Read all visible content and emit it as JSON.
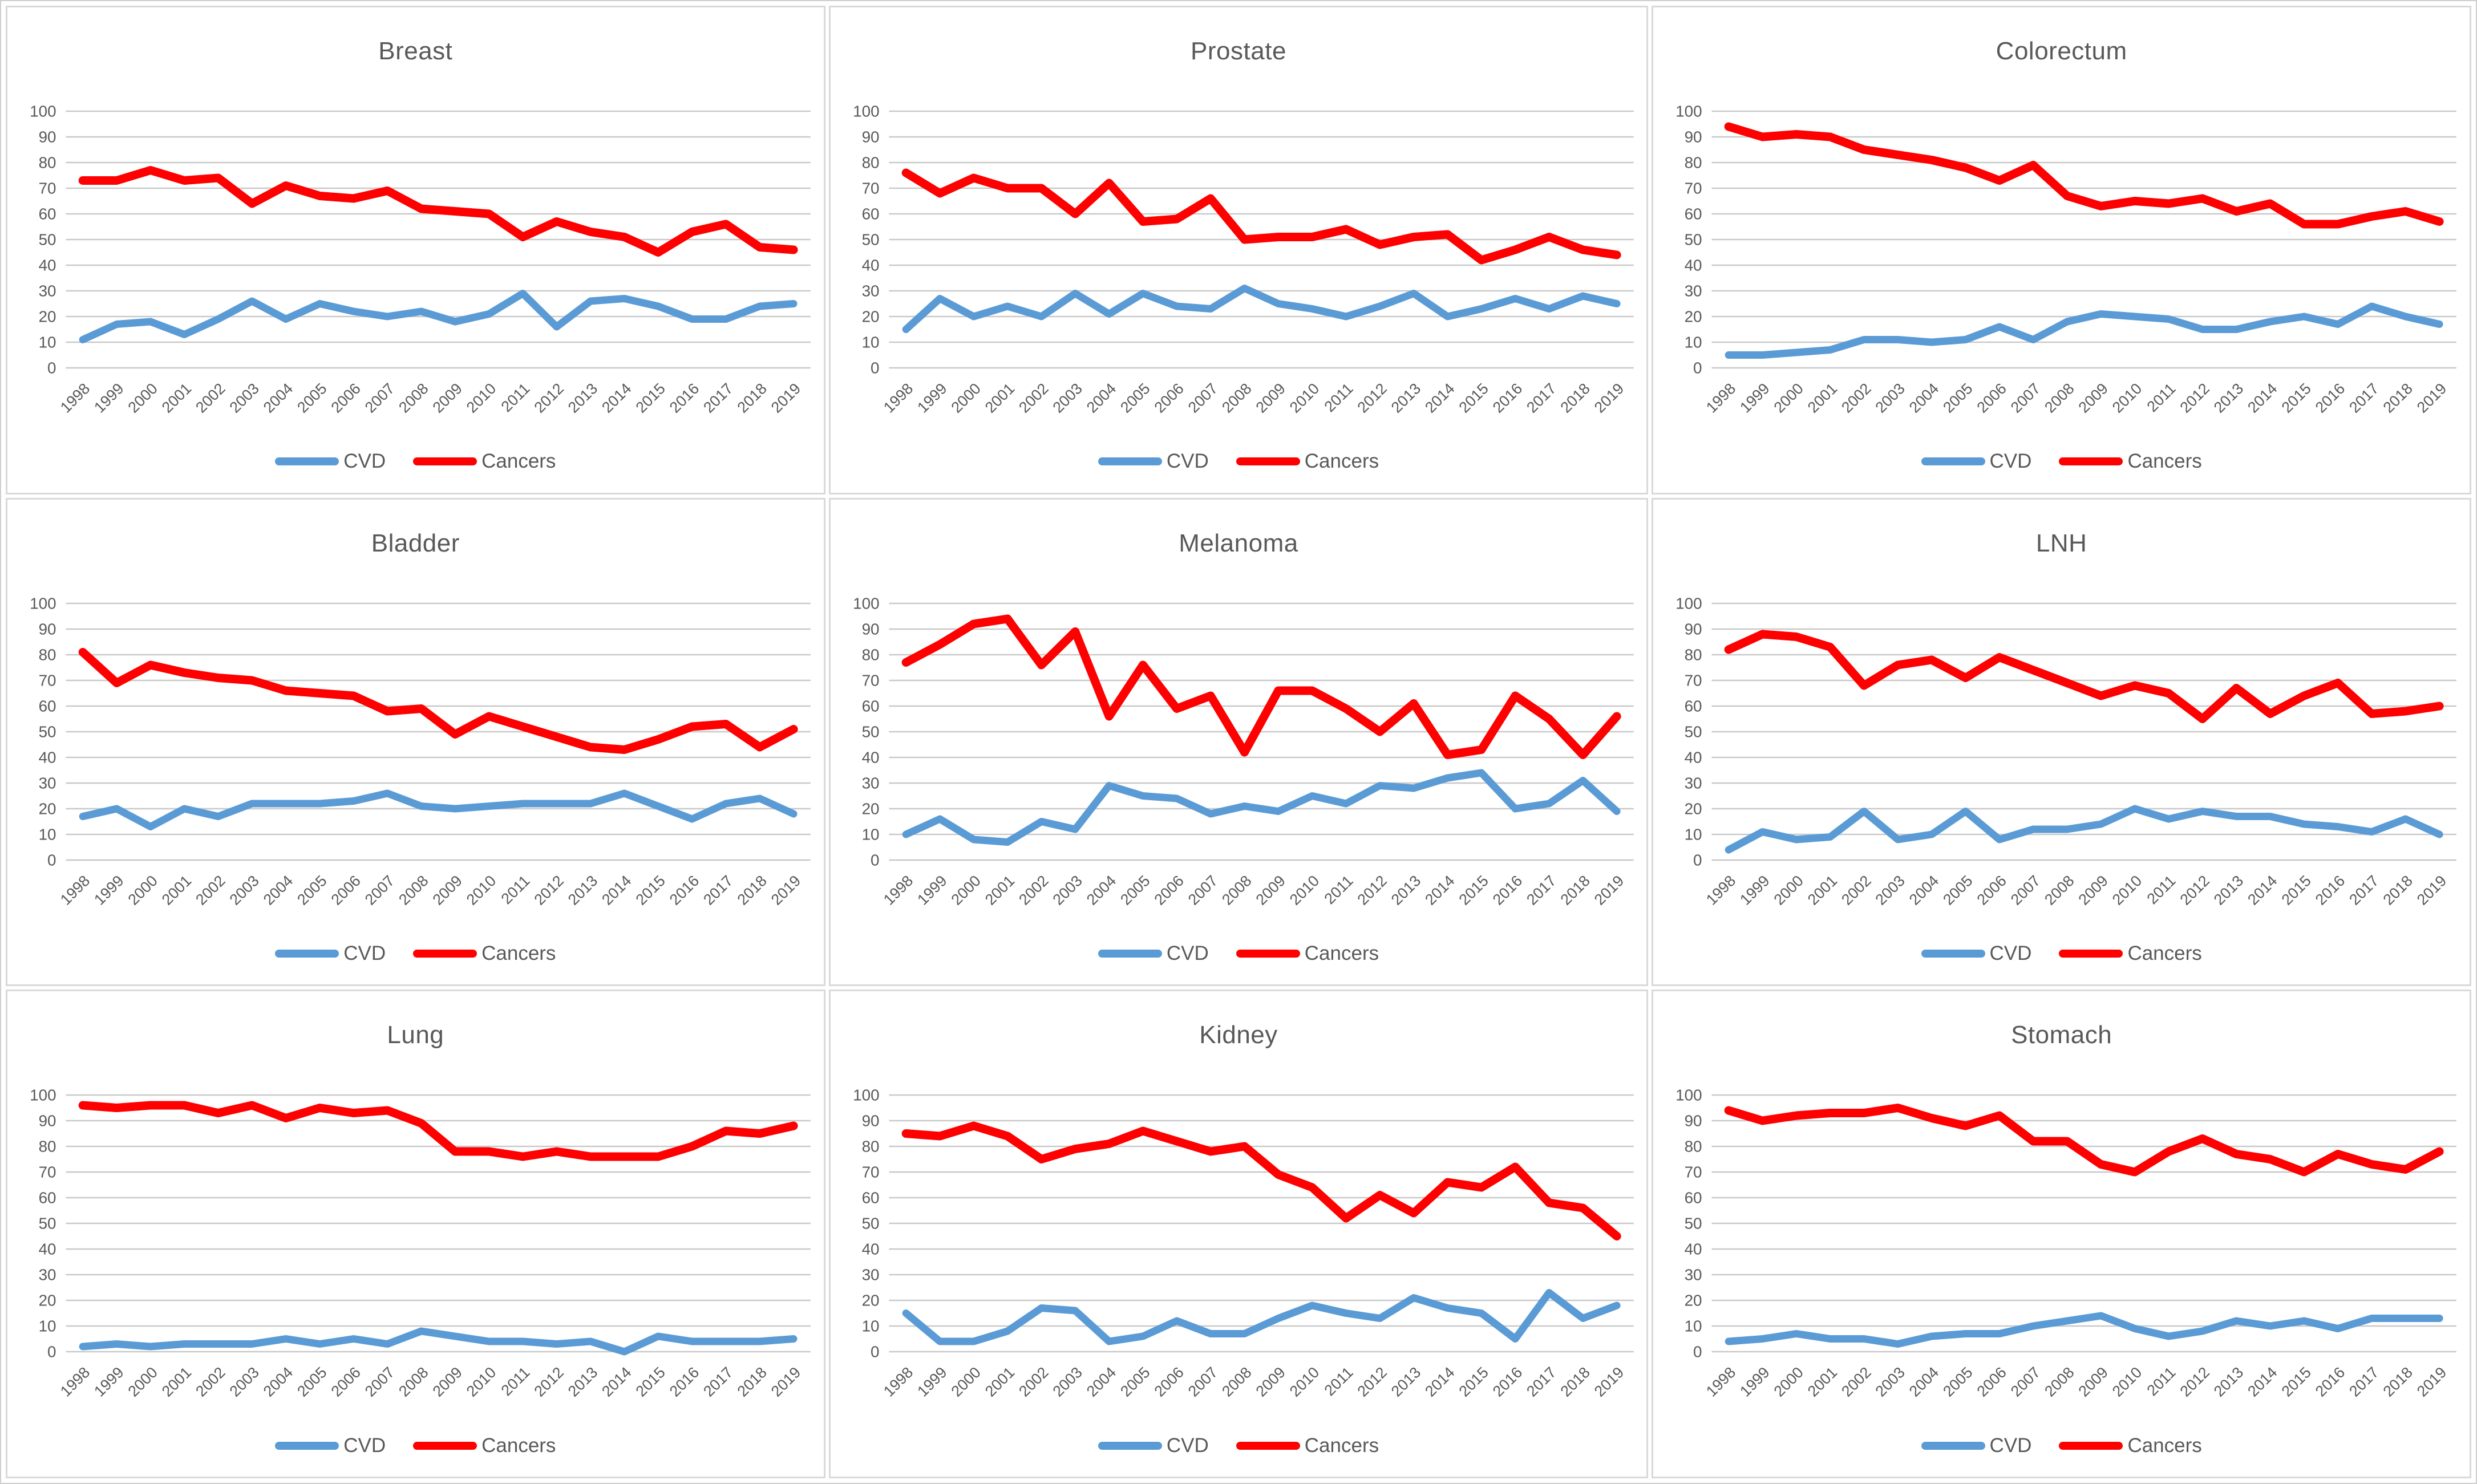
{
  "colors": {
    "cvd": "#5B9BD5",
    "cancers": "#FE0000",
    "grid": "#C9C9C9",
    "text": "#595959",
    "panel_border": "#D9D9D9",
    "background": "#FFFFFF"
  },
  "y_ticks": [
    100,
    90,
    80,
    70,
    60,
    50,
    40,
    30,
    20,
    10,
    0
  ],
  "years": [
    "1998",
    "1999",
    "2000",
    "2001",
    "2002",
    "2003",
    "2004",
    "2005",
    "2006",
    "2007",
    "2008",
    "2009",
    "2010",
    "2011",
    "2012",
    "2013",
    "2014",
    "2015",
    "2016",
    "2017",
    "2018",
    "2019"
  ],
  "chart_data": [
    {
      "type": "line",
      "title": "Breast",
      "xlabel": "",
      "ylabel": "",
      "ylim": [
        0,
        100
      ],
      "grid": true,
      "legend_position": "bottom",
      "categories": [
        "1998",
        "1999",
        "2000",
        "2001",
        "2002",
        "2003",
        "2004",
        "2005",
        "2006",
        "2007",
        "2008",
        "2009",
        "2010",
        "2011",
        "2012",
        "2013",
        "2014",
        "2015",
        "2016",
        "2017",
        "2018",
        "2019"
      ],
      "series": [
        {
          "name": "CVD",
          "color_key": "cvd",
          "values": [
            11,
            17,
            18,
            13,
            19,
            26,
            19,
            25,
            22,
            20,
            22,
            18,
            21,
            29,
            16,
            26,
            27,
            24,
            19,
            19,
            24,
            25
          ]
        },
        {
          "name": "Cancers",
          "color_key": "cancers",
          "values": [
            73,
            73,
            77,
            73,
            74,
            64,
            71,
            67,
            66,
            69,
            62,
            61,
            60,
            51,
            57,
            53,
            51,
            45,
            53,
            56,
            47,
            46
          ]
        }
      ]
    },
    {
      "type": "line",
      "title": "Prostate",
      "xlabel": "",
      "ylabel": "",
      "ylim": [
        0,
        100
      ],
      "grid": true,
      "legend_position": "bottom",
      "categories": [
        "1998",
        "1999",
        "2000",
        "2001",
        "2002",
        "2003",
        "2004",
        "2005",
        "2006",
        "2007",
        "2008",
        "2009",
        "2010",
        "2011",
        "2012",
        "2013",
        "2014",
        "2015",
        "2016",
        "2017",
        "2018",
        "2019"
      ],
      "series": [
        {
          "name": "CVD",
          "color_key": "cvd",
          "values": [
            15,
            27,
            20,
            24,
            20,
            29,
            21,
            29,
            24,
            23,
            31,
            25,
            23,
            20,
            24,
            29,
            20,
            23,
            27,
            23,
            28,
            25
          ]
        },
        {
          "name": "Cancers",
          "color_key": "cancers",
          "values": [
            76,
            68,
            74,
            70,
            70,
            60,
            72,
            57,
            58,
            66,
            50,
            51,
            51,
            54,
            48,
            51,
            52,
            42,
            46,
            51,
            46,
            44
          ]
        }
      ]
    },
    {
      "type": "line",
      "title": "Colorectum",
      "xlabel": "",
      "ylabel": "",
      "ylim": [
        0,
        100
      ],
      "grid": true,
      "legend_position": "bottom",
      "categories": [
        "1998",
        "1999",
        "2000",
        "2001",
        "2002",
        "2003",
        "2004",
        "2005",
        "2006",
        "2007",
        "2008",
        "2009",
        "2010",
        "2011",
        "2012",
        "2013",
        "2014",
        "2015",
        "2016",
        "2017",
        "2018",
        "2019"
      ],
      "series": [
        {
          "name": "CVD",
          "color_key": "cvd",
          "values": [
            5,
            5,
            6,
            7,
            11,
            11,
            10,
            11,
            16,
            11,
            18,
            21,
            20,
            19,
            15,
            15,
            18,
            20,
            17,
            24,
            20,
            17
          ]
        },
        {
          "name": "Cancers",
          "color_key": "cancers",
          "values": [
            94,
            90,
            91,
            90,
            85,
            83,
            81,
            78,
            73,
            79,
            67,
            63,
            65,
            64,
            66,
            61,
            64,
            56,
            56,
            59,
            61,
            57
          ]
        }
      ]
    },
    {
      "type": "line",
      "title": "Bladder",
      "xlabel": "",
      "ylabel": "",
      "ylim": [
        0,
        100
      ],
      "grid": true,
      "legend_position": "bottom",
      "categories": [
        "1998",
        "1999",
        "2000",
        "2001",
        "2002",
        "2003",
        "2004",
        "2005",
        "2006",
        "2007",
        "2008",
        "2009",
        "2010",
        "2011",
        "2012",
        "2013",
        "2014",
        "2015",
        "2016",
        "2017",
        "2018",
        "2019"
      ],
      "series": [
        {
          "name": "CVD",
          "color_key": "cvd",
          "values": [
            17,
            20,
            13,
            20,
            17,
            22,
            22,
            22,
            23,
            26,
            21,
            20,
            21,
            22,
            22,
            22,
            26,
            21,
            16,
            22,
            24,
            18
          ]
        },
        {
          "name": "Cancers",
          "color_key": "cancers",
          "values": [
            81,
            69,
            76,
            73,
            71,
            70,
            66,
            65,
            64,
            58,
            59,
            49,
            56,
            52,
            48,
            44,
            43,
            47,
            52,
            53,
            44,
            51
          ]
        }
      ]
    },
    {
      "type": "line",
      "title": "Melanoma",
      "xlabel": "",
      "ylabel": "",
      "ylim": [
        0,
        100
      ],
      "grid": true,
      "legend_position": "bottom",
      "categories": [
        "1998",
        "1999",
        "2000",
        "2001",
        "2002",
        "2003",
        "2004",
        "2005",
        "2006",
        "2007",
        "2008",
        "2009",
        "2010",
        "2011",
        "2012",
        "2013",
        "2014",
        "2015",
        "2016",
        "2017",
        "2018",
        "2019"
      ],
      "series": [
        {
          "name": "CVD",
          "color_key": "cvd",
          "values": [
            10,
            16,
            8,
            7,
            15,
            12,
            29,
            25,
            24,
            18,
            21,
            19,
            25,
            22,
            29,
            28,
            32,
            34,
            20,
            22,
            31,
            19
          ]
        },
        {
          "name": "Cancers",
          "color_key": "cancers",
          "values": [
            77,
            84,
            92,
            94,
            76,
            89,
            56,
            76,
            59,
            64,
            42,
            66,
            66,
            59,
            50,
            61,
            41,
            43,
            64,
            55,
            41,
            56
          ]
        }
      ]
    },
    {
      "type": "line",
      "title": "LNH",
      "xlabel": "",
      "ylabel": "",
      "ylim": [
        0,
        100
      ],
      "grid": true,
      "legend_position": "bottom",
      "categories": [
        "1998",
        "1999",
        "2000",
        "2001",
        "2002",
        "2003",
        "2004",
        "2005",
        "2006",
        "2007",
        "2008",
        "2009",
        "2010",
        "2011",
        "2012",
        "2013",
        "2014",
        "2015",
        "2016",
        "2017",
        "2018",
        "2019"
      ],
      "series": [
        {
          "name": "CVD",
          "color_key": "cvd",
          "values": [
            4,
            11,
            8,
            9,
            19,
            8,
            10,
            19,
            8,
            12,
            12,
            14,
            20,
            16,
            19,
            17,
            17,
            14,
            13,
            11,
            16,
            10
          ]
        },
        {
          "name": "Cancers",
          "color_key": "cancers",
          "values": [
            82,
            88,
            87,
            83,
            68,
            76,
            78,
            71,
            79,
            74,
            69,
            64,
            68,
            65,
            55,
            67,
            57,
            64,
            69,
            57,
            58,
            60
          ]
        }
      ]
    },
    {
      "type": "line",
      "title": "Lung",
      "xlabel": "",
      "ylabel": "",
      "ylim": [
        0,
        100
      ],
      "grid": true,
      "legend_position": "bottom",
      "categories": [
        "1998",
        "1999",
        "2000",
        "2001",
        "2002",
        "2003",
        "2004",
        "2005",
        "2006",
        "2007",
        "2008",
        "2009",
        "2010",
        "2011",
        "2012",
        "2013",
        "2014",
        "2015",
        "2016",
        "2017",
        "2018",
        "2019"
      ],
      "series": [
        {
          "name": "CVD",
          "color_key": "cvd",
          "values": [
            2,
            3,
            2,
            3,
            3,
            3,
            5,
            3,
            5,
            3,
            8,
            6,
            4,
            4,
            3,
            4,
            0,
            6,
            4,
            4,
            4,
            5
          ]
        },
        {
          "name": "Cancers",
          "color_key": "cancers",
          "values": [
            96,
            95,
            96,
            96,
            93,
            96,
            91,
            95,
            93,
            94,
            89,
            78,
            78,
            76,
            78,
            76,
            76,
            76,
            80,
            86,
            85,
            88
          ]
        }
      ]
    },
    {
      "type": "line",
      "title": "Kidney",
      "xlabel": "",
      "ylabel": "",
      "ylim": [
        0,
        100
      ],
      "grid": true,
      "legend_position": "bottom",
      "categories": [
        "1998",
        "1999",
        "2000",
        "2001",
        "2002",
        "2003",
        "2004",
        "2005",
        "2006",
        "2007",
        "2008",
        "2009",
        "2010",
        "2011",
        "2012",
        "2013",
        "2014",
        "2015",
        "2016",
        "2017",
        "2018",
        "2019"
      ],
      "series": [
        {
          "name": "CVD",
          "color_key": "cvd",
          "values": [
            15,
            4,
            4,
            8,
            17,
            16,
            4,
            6,
            12,
            7,
            7,
            13,
            18,
            15,
            13,
            21,
            17,
            15,
            5,
            23,
            13,
            18
          ]
        },
        {
          "name": "Cancers",
          "color_key": "cancers",
          "values": [
            85,
            84,
            88,
            84,
            75,
            79,
            81,
            86,
            82,
            78,
            80,
            69,
            64,
            52,
            61,
            54,
            66,
            64,
            72,
            58,
            56,
            45
          ]
        }
      ]
    },
    {
      "type": "line",
      "title": "Stomach",
      "xlabel": "",
      "ylabel": "",
      "ylim": [
        0,
        100
      ],
      "grid": true,
      "legend_position": "bottom",
      "categories": [
        "1998",
        "1999",
        "2000",
        "2001",
        "2002",
        "2003",
        "2004",
        "2005",
        "2006",
        "2007",
        "2008",
        "2009",
        "2010",
        "2011",
        "2012",
        "2013",
        "2014",
        "2015",
        "2016",
        "2017",
        "2018",
        "2019"
      ],
      "series": [
        {
          "name": "CVD",
          "color_key": "cvd",
          "values": [
            4,
            5,
            7,
            5,
            5,
            3,
            6,
            7,
            7,
            10,
            12,
            14,
            9,
            6,
            8,
            12,
            10,
            12,
            9,
            13,
            13,
            13
          ]
        },
        {
          "name": "Cancers",
          "color_key": "cancers",
          "values": [
            94,
            90,
            92,
            93,
            93,
            95,
            91,
            88,
            92,
            82,
            82,
            73,
            70,
            78,
            83,
            77,
            75,
            70,
            77,
            73,
            71,
            78
          ]
        }
      ]
    }
  ]
}
